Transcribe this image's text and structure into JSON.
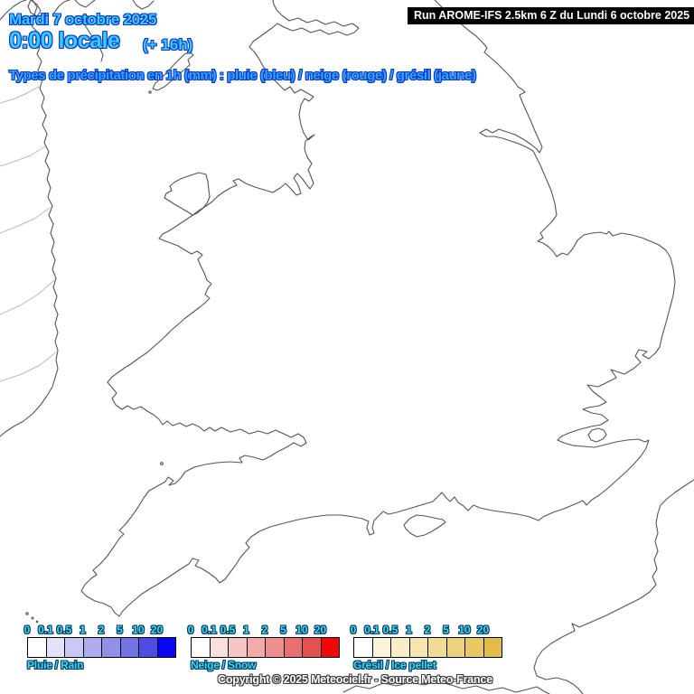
{
  "header": {
    "date_line": "Mardi 7 octobre 2025",
    "time_line": "0:00 locale",
    "offset": "(+ 16h)",
    "run_info": "Run AROME-IFS 2.5km 6 Z du Lundi 6 octobre 2025",
    "subtitle": "Types de précipitation en 1h (mm) : pluie (bleu) / neige (rouge) / grésil (jaune)"
  },
  "colors": {
    "headline_cyan": "#38CDFF",
    "headline_outline": "#0A36CC",
    "subtitle_blue": "#2FA7FF",
    "legend_text_cyan": "#3DD9E9",
    "run_bar_bg": "#000000",
    "run_bar_text": "#FFFFFF",
    "coastline": "#555555",
    "inner_border": "#BBBBBB"
  },
  "legends": [
    {
      "label": "Pluie / Rain",
      "values": [
        "0",
        "0.1",
        "0.5",
        "1",
        "2",
        "5",
        "10",
        "20"
      ],
      "colors": [
        "#ffffff",
        "#e2e2f9",
        "#c9c9f4",
        "#adadee",
        "#9090e7",
        "#7272e0",
        "#4d4de4",
        "#0707f0"
      ]
    },
    {
      "label": "Neige / Snow",
      "values": [
        "0",
        "0.1",
        "0.5",
        "1",
        "2",
        "5",
        "10",
        "20"
      ],
      "colors": [
        "#ffffff",
        "#fadfdf",
        "#f6c6c6",
        "#f2aaaa",
        "#ee8e8e",
        "#e97070",
        "#e45151",
        "#f20707"
      ]
    },
    {
      "label": "Grésil / Ice pellet",
      "values": [
        "0",
        "0.1",
        "0.5",
        "1",
        "2",
        "5",
        "10",
        "20"
      ],
      "colors": [
        "#ffffff",
        "#faf4da",
        "#f7eec6",
        "#f4e6ad",
        "#f0dc94",
        "#ecd27c",
        "#e8c864",
        "#e3bb4a"
      ]
    }
  ],
  "footer": {
    "copyright": "Copyright © 2025 Meteociel.fr - Source Meteo-France"
  }
}
